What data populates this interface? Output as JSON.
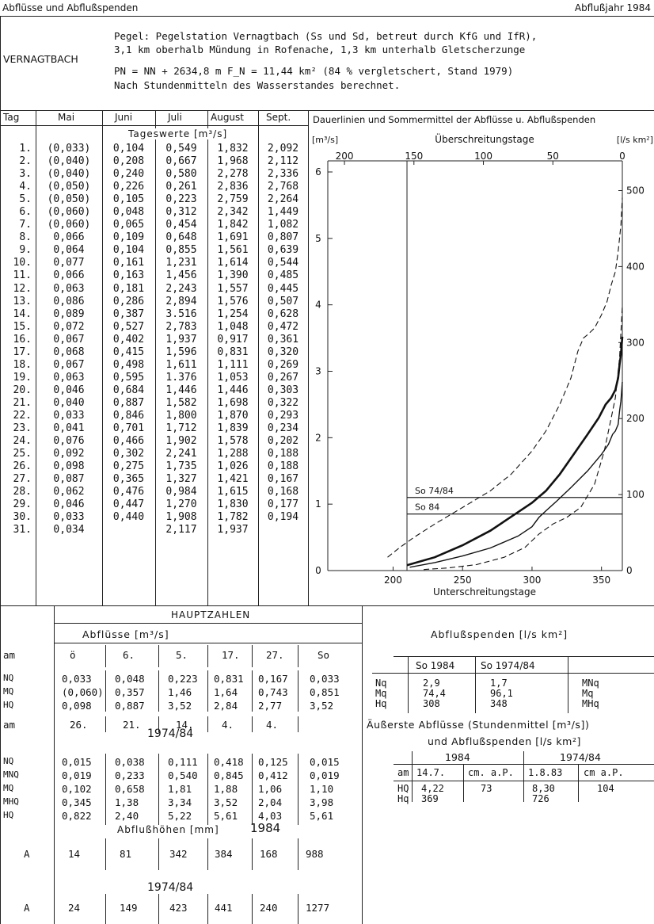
{
  "header": {
    "title": "Abflüsse und Abflußspenden",
    "year": "Abflußjahr 1984"
  },
  "station": {
    "name": "VERNAGTBACH",
    "lines": [
      "Pegel: Pegelstation Vernagtbach (Ss und Sd, betreut durch KfG und IfR),",
      "3,1 km oberhalb Mündung in Rofenache, 1,3 km unterhalb Gletscherzunge",
      "PN = NN + 2634,8 m F_N = 11,44 km² (84 % vergletschert, Stand 1979)",
      "Nach Stundenmitteln des Wasserstandes berechnet."
    ]
  },
  "daily": {
    "col_headers": [
      "Tag",
      "Mai",
      "Juni",
      "Juli",
      "August",
      "Sept."
    ],
    "subtitle": "Tageswerte [m³/s]",
    "rows": [
      [
        "1.",
        "(0,033)",
        "0,104",
        "0,549",
        "1,832",
        "2,092"
      ],
      [
        "2.",
        "(0,040)",
        "0,208",
        "0,667",
        "1,968",
        "2,112"
      ],
      [
        "3.",
        "(0,040)",
        "0,240",
        "0,580",
        "2,278",
        "2,336"
      ],
      [
        "4.",
        "(0,050)",
        "0,226",
        "0,261",
        "2,836",
        "2,768"
      ],
      [
        "5.",
        "(0,050)",
        "0,105",
        "0,223",
        "2,759",
        "2,264"
      ],
      [
        "6.",
        "(0,060)",
        "0,048",
        "0,312",
        "2,342",
        "1,449"
      ],
      [
        "7.",
        "(0,060)",
        "0,065",
        "0,454",
        "1,842",
        "1,082"
      ],
      [
        "8.",
        "0,066",
        "0,109",
        "0,648",
        "1,691",
        "0,807"
      ],
      [
        "9.",
        "0,064",
        "0,104",
        "0,855",
        "1,561",
        "0,639"
      ],
      [
        "10.",
        "0,077",
        "0,161",
        "1,231",
        "1,614",
        "0,544"
      ],
      [
        "11.",
        "0,066",
        "0,163",
        "1,456",
        "1,390",
        "0,485"
      ],
      [
        "12.",
        "0,063",
        "0,181",
        "2,243",
        "1,557",
        "0,445"
      ],
      [
        "13.",
        "0,086",
        "0,286",
        "2,894",
        "1,576",
        "0,507"
      ],
      [
        "14.",
        "0,089",
        "0,387",
        "3.516",
        "1,254",
        "0,628"
      ],
      [
        "15.",
        "0,072",
        "0,527",
        "2,783",
        "1,048",
        "0,472"
      ],
      [
        "16.",
        "0,067",
        "0,402",
        "1,937",
        "0,917",
        "0,361"
      ],
      [
        "17.",
        "0,068",
        "0,415",
        "1,596",
        "0,831",
        "0,320"
      ],
      [
        "18.",
        "0,067",
        "0,498",
        "1,611",
        "1,111",
        "0,269"
      ],
      [
        "19.",
        "0,063",
        "0,595",
        "1.376",
        "1,053",
        "0,267"
      ],
      [
        "20.",
        "0,046",
        "0,684",
        "1,446",
        "1,446",
        "0,303"
      ],
      [
        "21.",
        "0,040",
        "0,887",
        "1,582",
        "1,698",
        "0,322"
      ],
      [
        "22.",
        "0,033",
        "0,846",
        "1,800",
        "1,870",
        "0,293"
      ],
      [
        "23.",
        "0,041",
        "0,701",
        "1,712",
        "1,839",
        "0,234"
      ],
      [
        "24.",
        "0,076",
        "0,466",
        "1,902",
        "1,578",
        "0,202"
      ],
      [
        "25.",
        "0,092",
        "0,302",
        "2,241",
        "1,288",
        "0,188"
      ],
      [
        "26.",
        "0,098",
        "0,275",
        "1,735",
        "1,026",
        "0,188"
      ],
      [
        "27.",
        "0,087",
        "0,365",
        "1,327",
        "1,421",
        "0,167"
      ],
      [
        "28.",
        "0,062",
        "0,476",
        "0,984",
        "1,615",
        "0,168"
      ],
      [
        "29.",
        "0,046",
        "0,447",
        "1,270",
        "1,830",
        "0,177"
      ],
      [
        "30.",
        "0,033",
        "0,440",
        "1,908",
        "1,782",
        "0,194"
      ],
      [
        "31.",
        "0,034",
        "",
        "2,117",
        "1,937",
        ""
      ]
    ]
  },
  "chart_data": {
    "type": "line",
    "title": "Dauerlinien und Sommermittel der Abflüsse u. Abflußspenden",
    "ylabel_left": "[m³/s]",
    "ylabel_right": "[l/s km²]",
    "xlabel_top": "Überschreitungstage",
    "xlabel_bottom": "Unterschreitungstage",
    "top_ticks": [
      "200",
      "150",
      "100",
      "50",
      "0"
    ],
    "bottom_ticks": [
      "200",
      "250",
      "300",
      "350"
    ],
    "left_ticks": [
      "0",
      "1",
      "2",
      "3",
      "4",
      "5",
      "6"
    ],
    "right_ticks": [
      "0",
      "100",
      "200",
      "300",
      "400",
      "500"
    ],
    "xlim_bottom": [
      153,
      365
    ],
    "ylim_left": [
      0,
      6
    ],
    "right_scale": [
      0,
      524.5
    ],
    "series": [
      {
        "style": "solid-thick",
        "x": [
          210,
          230,
          250,
          270,
          290,
          300,
          310,
          320,
          330,
          340,
          348,
          353,
          357,
          360,
          362,
          363,
          364,
          365
        ],
        "y": [
          0.08,
          0.2,
          0.38,
          0.6,
          0.88,
          1.02,
          1.2,
          1.45,
          1.75,
          2.05,
          2.3,
          2.5,
          2.6,
          2.72,
          2.9,
          3.1,
          3.25,
          3.52
        ]
      },
      {
        "style": "solid-thin",
        "x": [
          212,
          230,
          250,
          270,
          290,
          300,
          305,
          310,
          318,
          328,
          340,
          350,
          355,
          358,
          360,
          362,
          363,
          364,
          365
        ],
        "y": [
          0.05,
          0.12,
          0.22,
          0.34,
          0.52,
          0.66,
          0.8,
          0.9,
          1.05,
          1.25,
          1.5,
          1.75,
          1.9,
          2.05,
          2.1,
          2.2,
          2.4,
          2.55,
          2.84
        ]
      },
      {
        "style": "dashed",
        "x": [
          196,
          205,
          215,
          230,
          250,
          270,
          285,
          300,
          310,
          320,
          328,
          333,
          337,
          340,
          345,
          350,
          354,
          357,
          360,
          362,
          364,
          365
        ],
        "y": [
          0.2,
          0.35,
          0.5,
          0.7,
          0.95,
          1.2,
          1.45,
          1.8,
          2.1,
          2.5,
          2.9,
          3.3,
          3.5,
          3.55,
          3.65,
          3.85,
          4.05,
          4.3,
          4.5,
          4.8,
          5.2,
          5.61
        ]
      },
      {
        "style": "dashed",
        "x": [
          222,
          240,
          260,
          280,
          295,
          305,
          315,
          325,
          335,
          345,
          352,
          357,
          360,
          363,
          365
        ],
        "y": [
          0.015,
          0.04,
          0.09,
          0.2,
          0.35,
          0.55,
          0.7,
          0.8,
          0.95,
          1.3,
          1.8,
          2.3,
          2.6,
          3.2,
          3.98
        ]
      }
    ],
    "reference_lines": [
      {
        "label": "So 74/84",
        "value": 1.1
      },
      {
        "label": "So 84",
        "value": 0.851
      }
    ],
    "vertical_line_x": 210
  },
  "haupt": {
    "title": "HAUPTZAHLEN",
    "subtitle": "Abflüsse [m³/s]",
    "am_label": "am",
    "cols_1984": [
      "ö",
      "6.",
      "5.",
      "17.",
      "27.",
      "So"
    ],
    "rows_1984": [
      [
        "NQ",
        "0,033",
        "0,048",
        "0,223",
        "0,831",
        "0,167",
        "0,033"
      ],
      [
        "MQ",
        "(0,060)",
        "0,357",
        "1,46",
        "1,64",
        "0,743",
        "0,851"
      ],
      [
        "HQ",
        "0,098",
        "0,887",
        "3,52",
        "2,84",
        "2,77",
        "3,52"
      ]
    ],
    "am_dates": [
      "26.",
      "21.",
      "14.",
      "4.",
      "4."
    ],
    "period_label": "1974/84",
    "rows_7484": [
      [
        "NQ",
        "0,015",
        "0,038",
        "0,111",
        "0,418",
        "0,125",
        "0,015"
      ],
      [
        "MNQ",
        "0,019",
        "0,233",
        "0,540",
        "0,845",
        "0,412",
        "0,019"
      ],
      [
        "MQ",
        "0,102",
        "0,658",
        "1,81",
        "1,88",
        "1,06",
        "1,10"
      ],
      [
        "MHQ",
        "0,345",
        "1,38",
        "3,34",
        "3,52",
        "2,04",
        "3,98"
      ],
      [
        "HQ",
        "0,822",
        "2,40",
        "5,22",
        "5,61",
        "4,03",
        "5,61"
      ]
    ],
    "hoehen_title": "Abflußhöhen [mm]",
    "hoehen_year": "1984",
    "a_label": "A",
    "a_1984": [
      "14",
      "81",
      "342",
      "384",
      "168",
      "988"
    ],
    "a_period_label": "1974/84",
    "a_7484": [
      "24",
      "149",
      "423",
      "441",
      "240",
      "1277"
    ]
  },
  "spenden": {
    "title": "Abflußspenden [l/s km²]",
    "cols": [
      "So 1984",
      "So 1974/84"
    ],
    "rows": [
      [
        "Nq",
        "2,9",
        "1,7",
        "MNq"
      ],
      [
        "Mq",
        "74,4",
        "96,1",
        "Mq"
      ],
      [
        "Hq",
        "308",
        "348",
        "MHq"
      ]
    ]
  },
  "extreme": {
    "title1": "Äußerste Abflüsse (Stundenmittel [m³/s])",
    "title2": "und Abflußspenden [l/s km²]",
    "year1": "1984",
    "year2": "1974/84",
    "am_label": "am",
    "am_row": [
      "14.7.",
      "cm. a.P.",
      "1.8.83",
      "cm a.P."
    ],
    "hq_row": [
      "HQ",
      "4,22",
      "73",
      "8,30",
      "104"
    ],
    "hq2_row": [
      "Hq",
      "369",
      "",
      "726",
      ""
    ]
  }
}
